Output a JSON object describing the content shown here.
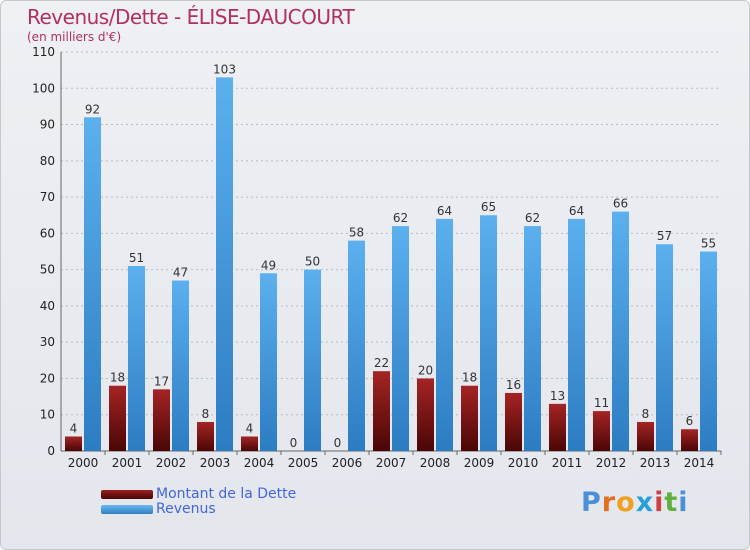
{
  "chart_data": {
    "type": "bar",
    "title": "Revenus/Dette - ÉLISE-DAUCOURT",
    "subtitle": "(en milliers d'€)",
    "xlabel": "",
    "ylabel": "",
    "categories": [
      "2000",
      "2001",
      "2002",
      "2003",
      "2004",
      "2005",
      "2006",
      "2007",
      "2008",
      "2009",
      "2010",
      "2011",
      "2012",
      "2013",
      "2014"
    ],
    "series": [
      {
        "name": "Montant de la Dette",
        "color": "#7a1212",
        "values": [
          4,
          18,
          17,
          8,
          4,
          0,
          0,
          22,
          20,
          18,
          16,
          13,
          11,
          8,
          6
        ]
      },
      {
        "name": "Revenus",
        "color": "#4fa3e6",
        "values": [
          92,
          51,
          47,
          103,
          49,
          50,
          58,
          62,
          64,
          65,
          62,
          64,
          66,
          57,
          55
        ]
      }
    ],
    "ylim": [
      0,
      110
    ],
    "yticks": [
      0,
      10,
      20,
      30,
      40,
      50,
      60,
      70,
      80,
      90,
      100,
      110
    ],
    "grid": true,
    "legend_position": "bottom-left"
  },
  "logo": {
    "text": "Proxiti",
    "colors": [
      "#4a90d9",
      "#e07020",
      "#f0a020",
      "#2aa0d8",
      "#d04040",
      "#60b040",
      "#4a90d9"
    ]
  }
}
